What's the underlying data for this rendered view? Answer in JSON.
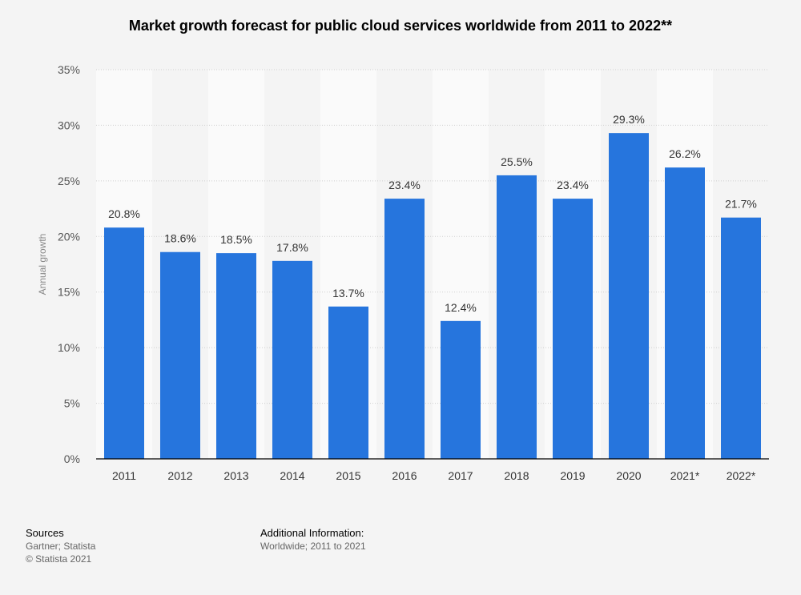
{
  "title": "Market growth forecast for public cloud services worldwide from 2011 to 2022**",
  "chart_data": {
    "type": "bar",
    "title": "Market growth forecast for public cloud services worldwide from 2011 to 2022**",
    "categories": [
      "2011",
      "2012",
      "2013",
      "2014",
      "2015",
      "2016",
      "2017",
      "2018",
      "2019",
      "2020",
      "2021*",
      "2022*"
    ],
    "values": [
      20.8,
      18.6,
      18.5,
      17.8,
      13.7,
      23.4,
      12.4,
      25.5,
      23.4,
      29.3,
      26.2,
      21.7
    ],
    "value_labels": [
      "20.8%",
      "18.6%",
      "18.5%",
      "17.8%",
      "13.7%",
      "23.4%",
      "12.4%",
      "25.5%",
      "23.4%",
      "29.3%",
      "26.2%",
      "21.7%"
    ],
    "ylabel": "Annual growth",
    "xlabel": "",
    "ylim": [
      0,
      35
    ],
    "yticks": [
      0,
      5,
      10,
      15,
      20,
      25,
      30,
      35
    ],
    "ytick_labels": [
      "0%",
      "5%",
      "10%",
      "15%",
      "20%",
      "25%",
      "30%",
      "35%"
    ],
    "grid": true,
    "bar_color": "#2675dd"
  },
  "footer": {
    "sources_head": "Sources",
    "sources_lines": [
      "Gartner; Statista",
      "© Statista 2021"
    ],
    "info_head": "Additional Information:",
    "info_lines": [
      "Worldwide; 2011 to 2021"
    ]
  }
}
